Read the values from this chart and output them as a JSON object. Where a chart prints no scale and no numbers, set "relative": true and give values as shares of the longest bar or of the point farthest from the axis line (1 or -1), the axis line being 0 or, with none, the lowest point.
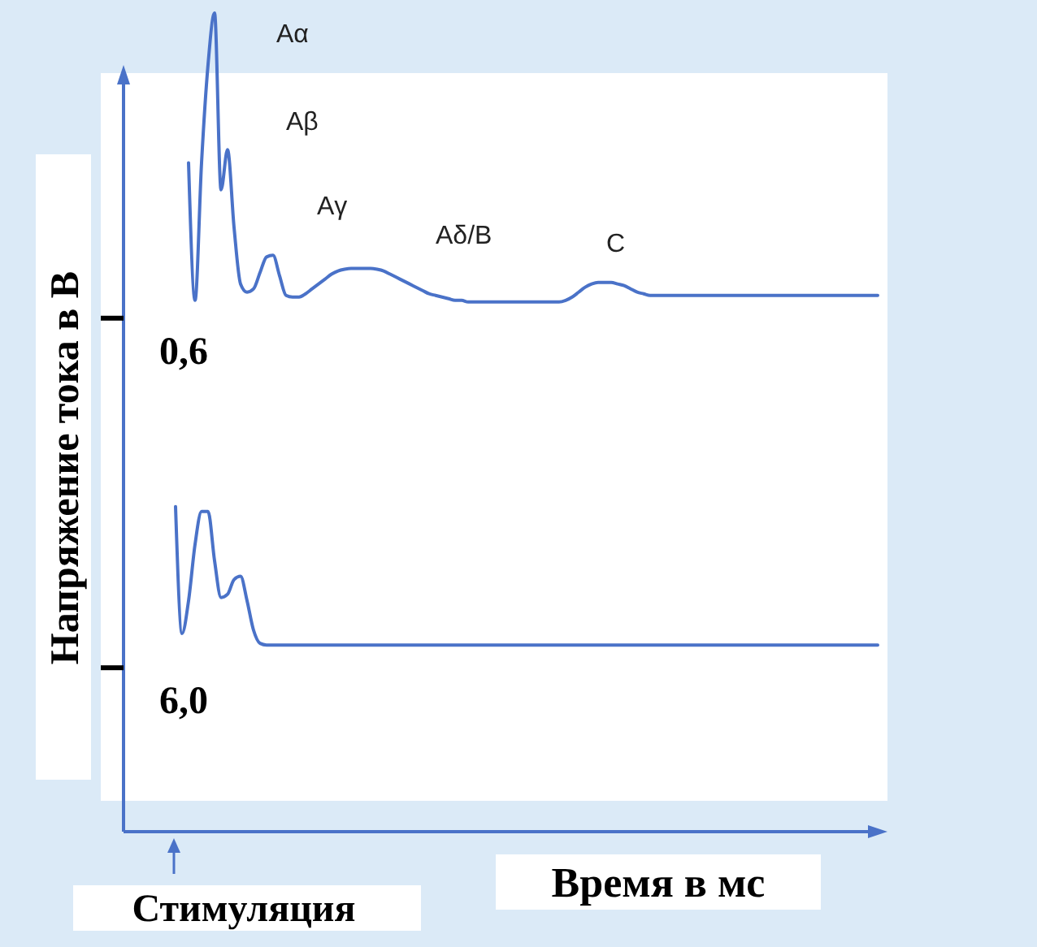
{
  "chart_data": {
    "type": "line",
    "relative": true,
    "xlabel": "Время в мс",
    "ylabel": "Напряжение тока в В",
    "categories": [
      null,
      null,
      null,
      null,
      null,
      null,
      null,
      null,
      null,
      null,
      null,
      null,
      null,
      null,
      null,
      null,
      null,
      null,
      null,
      null,
      null,
      null,
      null,
      null,
      null,
      null,
      null,
      null,
      null,
      null,
      null,
      null,
      null,
      null,
      null,
      null,
      null,
      null,
      null,
      null,
      null,
      null,
      null,
      null,
      null,
      null,
      null,
      null,
      null,
      null,
      null,
      null,
      null,
      null,
      null,
      null,
      null,
      null,
      null,
      null,
      null,
      null,
      null,
      null,
      null,
      null,
      null,
      null,
      null,
      null,
      null,
      null,
      null,
      null,
      null,
      null,
      null,
      null,
      null,
      null,
      null,
      null,
      null,
      null,
      null,
      null,
      null,
      null,
      null,
      null,
      null,
      null,
      null,
      null,
      null,
      null,
      null,
      null,
      null,
      null,
      null,
      null,
      null,
      null,
      null,
      null,
      null,
      null,
      null,
      null,
      null,
      null,
      null,
      null,
      null,
      null,
      null
    ],
    "series": [
      {
        "name": "0,6",
        "color": "#4a72c8",
        "values": [
          null,
          null,
          null,
          null,
          null,
          null,
          null,
          null,
          null,
          null,
          0.817,
          0.649,
          0.817,
          0.937,
          1,
          0.784,
          0.833,
          0.738,
          0.669,
          0.659,
          0.663,
          0.683,
          0.702,
          0.704,
          0.679,
          0.655,
          0.653,
          0.653,
          0.657,
          0.663,
          0.669,
          0.675,
          0.681,
          0.685,
          0.687,
          0.688,
          0.688,
          0.688,
          0.688,
          0.687,
          0.685,
          0.681,
          0.677,
          0.673,
          0.669,
          0.665,
          0.661,
          0.657,
          0.655,
          0.653,
          0.651,
          0.649,
          0.649,
          0.647,
          0.647,
          0.647,
          0.647,
          0.647,
          0.647,
          0.647,
          0.647,
          0.647,
          0.647,
          0.647,
          0.647,
          0.647,
          0.647,
          0.647,
          0.649,
          0.653,
          0.659,
          0.665,
          0.669,
          0.671,
          0.671,
          0.671,
          0.669,
          0.667,
          0.663,
          0.659,
          0.657,
          0.655,
          0.655,
          0.655,
          0.655,
          0.655,
          0.655,
          0.655,
          0.655,
          0.655,
          0.655,
          0.655,
          0.655,
          0.655,
          0.655,
          0.655,
          0.655,
          0.655,
          0.655,
          0.655,
          0.655,
          0.655,
          0.655,
          0.655,
          0.655,
          0.655,
          0.655,
          0.655,
          0.655,
          0.655,
          0.655,
          0.655,
          0.655,
          0.655,
          0.655,
          0.655,
          0.655
        ]
      },
      {
        "name": "6,0",
        "color": "#4a72c8",
        "values": [
          null,
          null,
          null,
          null,
          null,
          null,
          null,
          null,
          0.397,
          0.242,
          0.282,
          0.351,
          0.391,
          0.391,
          0.331,
          0.286,
          0.29,
          0.308,
          0.312,
          0.282,
          0.246,
          0.23,
          0.228,
          0.228,
          0.228,
          0.228,
          0.228,
          0.228,
          0.228,
          0.228,
          0.228,
          0.228,
          0.228,
          0.228,
          0.228,
          0.228,
          0.228,
          0.228,
          0.228,
          0.228,
          0.228,
          0.228,
          0.228,
          0.228,
          0.228,
          0.228,
          0.228,
          0.228,
          0.228,
          0.228,
          0.228,
          0.228,
          0.228,
          0.228,
          0.228,
          0.228,
          0.228,
          0.228,
          0.228,
          0.228,
          0.228,
          0.228,
          0.228,
          0.228,
          0.228,
          0.228,
          0.228,
          0.228,
          0.228,
          0.228,
          0.228,
          0.228,
          0.228,
          0.228,
          0.228,
          0.228,
          0.228,
          0.228,
          0.228,
          0.228,
          0.228,
          0.228,
          0.228,
          0.228,
          0.228,
          0.228,
          0.228,
          0.228,
          0.228,
          0.228,
          0.228,
          0.228,
          0.228,
          0.228,
          0.228,
          0.228,
          0.228,
          0.228,
          0.228,
          0.228,
          0.228,
          0.228,
          0.228,
          0.228,
          0.228,
          0.228,
          0.228,
          0.228,
          0.228,
          0.228,
          0.228,
          0.228,
          0.228,
          0.228,
          0.228,
          0.228,
          0.228
        ]
      }
    ],
    "annotations": [
      "Aα",
      "Aβ",
      "Aγ",
      "Aδ/B",
      "C",
      "Стимуляция"
    ]
  }
}
